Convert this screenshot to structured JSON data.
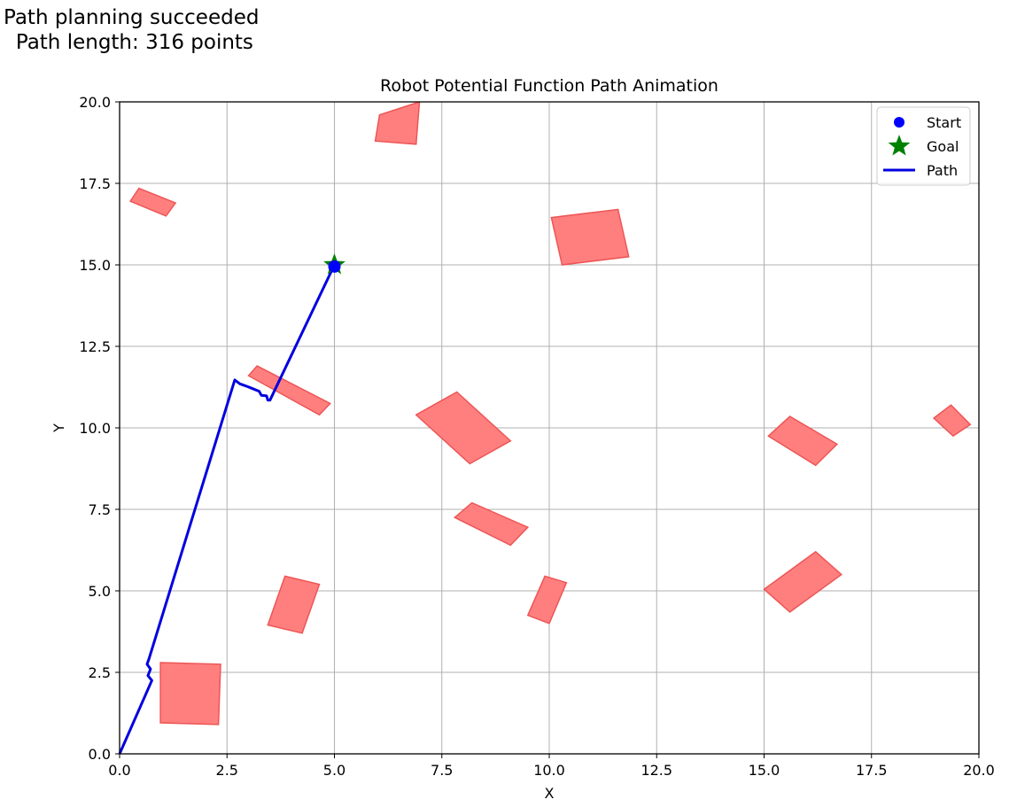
{
  "status": {
    "line1": "Path planning succeeded",
    "line2": " Path length: 316 points"
  },
  "chart_data": {
    "type": "scatter",
    "title": "Robot Potential Function Path Animation",
    "xlabel": "X",
    "ylabel": "Y",
    "xlim": [
      0,
      20
    ],
    "ylim": [
      0,
      20
    ],
    "xticks": [
      "0.0",
      "2.5",
      "5.0",
      "7.5",
      "10.0",
      "12.5",
      "15.0",
      "17.5",
      "20.0"
    ],
    "yticks": [
      "0.0",
      "2.5",
      "5.0",
      "7.5",
      "10.0",
      "12.5",
      "15.0",
      "17.5",
      "20.0"
    ],
    "grid": true,
    "legend_position": "top-right",
    "legend": [
      {
        "label": "Start",
        "marker": "circle",
        "color": "#0000ff"
      },
      {
        "label": "Goal",
        "marker": "star",
        "color": "#008000"
      },
      {
        "label": "Path",
        "marker": "line",
        "color": "#0000e0"
      }
    ],
    "start": {
      "x": 5.0,
      "y": 14.95
    },
    "goal": {
      "x": 5.0,
      "y": 15.0
    },
    "path": [
      [
        0.0,
        0.0
      ],
      [
        0.75,
        2.25
      ],
      [
        0.66,
        2.4
      ],
      [
        0.72,
        2.6
      ],
      [
        0.64,
        2.75
      ],
      [
        0.68,
        2.9
      ],
      [
        2.68,
        11.47
      ],
      [
        2.8,
        11.35
      ],
      [
        2.95,
        11.28
      ],
      [
        3.1,
        11.2
      ],
      [
        3.25,
        11.12
      ],
      [
        3.3,
        11.0
      ],
      [
        3.42,
        10.98
      ],
      [
        3.45,
        10.85
      ],
      [
        3.5,
        10.85
      ],
      [
        5.0,
        15.0
      ]
    ],
    "obstacle_color": "#ff7f7f",
    "obstacles": [
      [
        [
          6.05,
          19.6
        ],
        [
          6.98,
          20.0
        ],
        [
          6.9,
          18.7
        ],
        [
          5.95,
          18.8
        ]
      ],
      [
        [
          0.25,
          16.95
        ],
        [
          0.45,
          17.35
        ],
        [
          1.3,
          16.9
        ],
        [
          1.08,
          16.5
        ]
      ],
      [
        [
          10.05,
          16.45
        ],
        [
          11.6,
          16.7
        ],
        [
          11.85,
          15.25
        ],
        [
          10.3,
          15.0
        ]
      ],
      [
        [
          3.0,
          11.6
        ],
        [
          3.2,
          11.9
        ],
        [
          4.9,
          10.75
        ],
        [
          4.65,
          10.4
        ]
      ],
      [
        [
          6.9,
          10.4
        ],
        [
          7.85,
          11.1
        ],
        [
          9.1,
          9.6
        ],
        [
          8.15,
          8.9
        ]
      ],
      [
        [
          15.1,
          9.75
        ],
        [
          15.6,
          10.35
        ],
        [
          16.7,
          9.5
        ],
        [
          16.2,
          8.85
        ]
      ],
      [
        [
          18.95,
          10.3
        ],
        [
          19.35,
          10.7
        ],
        [
          19.8,
          10.1
        ],
        [
          19.4,
          9.75
        ]
      ],
      [
        [
          7.8,
          7.25
        ],
        [
          8.2,
          7.7
        ],
        [
          9.5,
          6.95
        ],
        [
          9.1,
          6.4
        ]
      ],
      [
        [
          15.0,
          5.05
        ],
        [
          16.2,
          6.2
        ],
        [
          16.8,
          5.5
        ],
        [
          15.6,
          4.35
        ]
      ],
      [
        [
          9.5,
          4.25
        ],
        [
          9.9,
          5.45
        ],
        [
          10.4,
          5.25
        ],
        [
          10.0,
          4.0
        ]
      ],
      [
        [
          3.45,
          3.95
        ],
        [
          3.85,
          5.45
        ],
        [
          4.65,
          5.2
        ],
        [
          4.25,
          3.7
        ]
      ],
      [
        [
          0.95,
          2.8
        ],
        [
          2.35,
          2.75
        ],
        [
          2.3,
          0.9
        ],
        [
          0.95,
          0.95
        ]
      ]
    ]
  }
}
